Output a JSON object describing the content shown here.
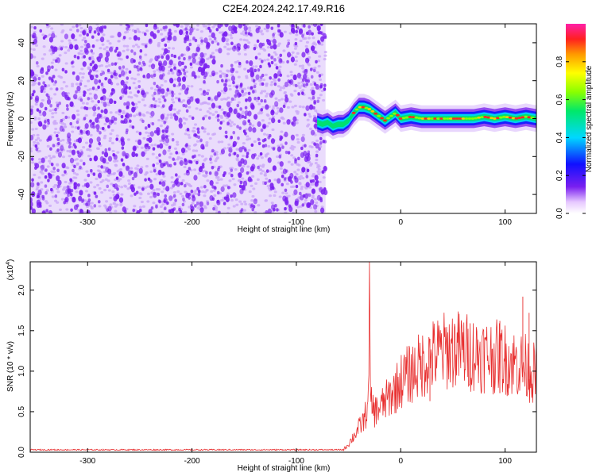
{
  "figure": {
    "title": "C2E4.2024.242.17.49.R16"
  },
  "colors": {
    "snr_line": "#e83030",
    "frame": "#000000",
    "scatter_primary": "#7a1ff0",
    "scatter_faint": "#caa8f8"
  },
  "chart_data": [
    {
      "type": "heatmap",
      "xlabel": "Height of straight line (km)",
      "ylabel": "Frequency (Hz)",
      "xlim": [
        -355,
        130
      ],
      "ylim": [
        -50,
        50
      ],
      "x_ticks": [
        -300,
        -200,
        -100,
        0,
        100
      ],
      "x_tick_labels": [
        "-300",
        "-200",
        "-100",
        "0",
        "100"
      ],
      "y_ticks": [
        -40,
        -20,
        0,
        20,
        40
      ],
      "y_tick_labels": [
        "-40",
        "-20",
        "0",
        "20",
        "40"
      ],
      "noise_region_x": [
        -355,
        -72
      ],
      "ridge": {
        "x": [
          -80,
          -75,
          -70,
          -65,
          -60,
          -55,
          -50,
          -45,
          -40,
          -35,
          -30,
          -25,
          -20,
          -15,
          -10,
          -5,
          0,
          10,
          20,
          30,
          40,
          50,
          60,
          70,
          80,
          90,
          100,
          110,
          120,
          130
        ],
        "y": [
          -2,
          -3,
          -2,
          -4,
          -3,
          -3,
          -1,
          3,
          6,
          6,
          5,
          3,
          1,
          -1,
          1,
          3,
          0,
          1,
          0,
          0,
          0,
          0,
          0,
          0,
          1,
          0,
          1,
          0,
          1,
          0
        ]
      },
      "colorbar": {
        "label": "Normalized spectral amplitude",
        "range": [
          0,
          1
        ],
        "ticks": [
          0.0,
          0.2,
          0.4,
          0.6,
          0.8
        ],
        "tick_labels": [
          "0.0",
          "0.2",
          "0.4",
          "0.6",
          "0.8"
        ]
      }
    },
    {
      "type": "line",
      "xlabel": "Height of straight line (km)",
      "ylabel": "SNR (10 * v/v)",
      "y_scale_label": "(x10",
      "y_scale_exponent": "4",
      "y_scale_suffix": ")",
      "xlim": [
        -355,
        130
      ],
      "ylim": [
        0,
        2.35
      ],
      "x_ticks": [
        -300,
        -200,
        -100,
        0,
        100
      ],
      "x_tick_labels": [
        "-300",
        "-200",
        "-100",
        "0",
        "100"
      ],
      "y_ticks": [
        0.0,
        0.5,
        1.0,
        1.5,
        2.0
      ],
      "y_tick_labels": [
        "0.0",
        "0.5",
        "1.0",
        "1.5",
        "2.0"
      ],
      "series": [
        {
          "x": [
            -355,
            -300,
            -200,
            -100,
            -55,
            -50,
            -45,
            -40,
            -35,
            -31,
            -30,
            -29,
            -25,
            -20,
            -15,
            -10,
            -5,
            0,
            10,
            20,
            30,
            40,
            50,
            60,
            70,
            80,
            90,
            100,
            110,
            120,
            125,
            130
          ],
          "values": [
            0.03,
            0.03,
            0.03,
            0.03,
            0.03,
            0.1,
            0.2,
            0.3,
            0.4,
            0.6,
            2.35,
            0.6,
            0.5,
            0.55,
            0.62,
            0.7,
            0.78,
            0.88,
            0.98,
            1.08,
            1.18,
            1.24,
            1.28,
            1.25,
            1.22,
            1.2,
            1.18,
            1.15,
            1.1,
            1.05,
            1.0,
            0.95
          ]
        }
      ],
      "spikes": [
        {
          "x": 28,
          "y": 1.4
        },
        {
          "x": 95,
          "y": 1.62
        },
        {
          "x": 117,
          "y": 1.92
        },
        {
          "x": 123,
          "y": 1.72
        }
      ]
    }
  ]
}
